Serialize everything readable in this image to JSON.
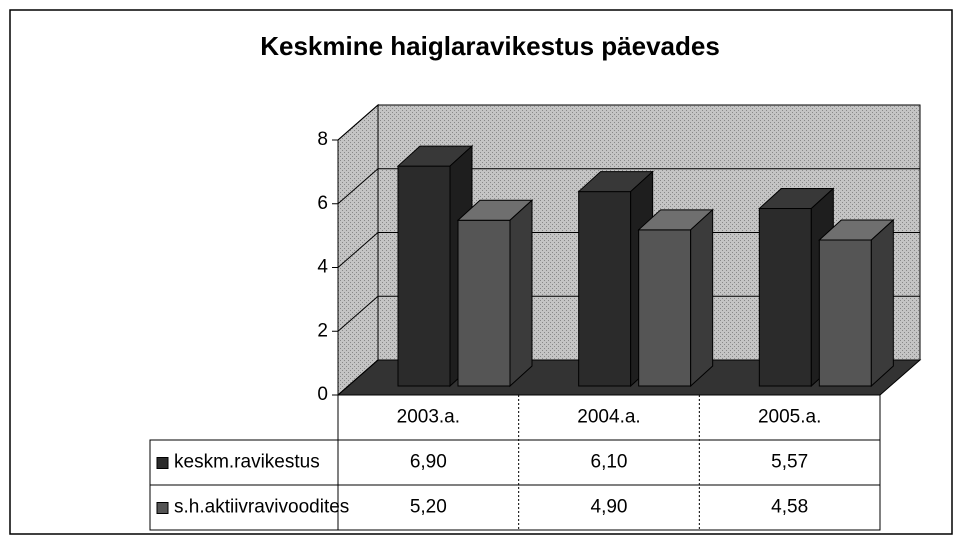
{
  "chart_data": {
    "type": "bar3d",
    "title": "Keskmine haiglaravikestus päevades",
    "categories": [
      "2003.a.",
      "2004.a.",
      "2005.a."
    ],
    "series": [
      {
        "name": "keskm.ravikestus",
        "color": "#2b2b2b",
        "values": [
          6.9,
          6.1,
          5.57
        ],
        "value_labels": [
          "6,90",
          "6,10",
          "5,57"
        ]
      },
      {
        "name": "s.h.aktiivravivoodites",
        "color": "#555555",
        "values": [
          5.2,
          4.9,
          4.58
        ],
        "value_labels": [
          "5,20",
          "4,90",
          "4,58"
        ]
      }
    ],
    "ylim": [
      0,
      8
    ],
    "yticks": [
      0,
      2,
      4,
      6,
      8
    ],
    "grid": true,
    "data_table": true
  }
}
